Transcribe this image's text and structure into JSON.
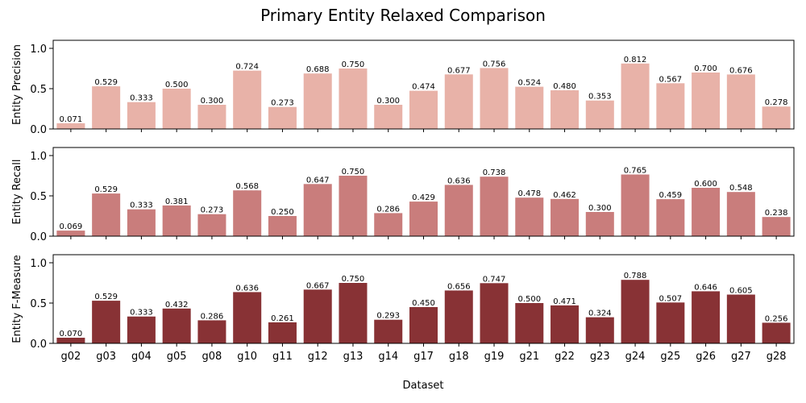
{
  "chart_data": {
    "type": "bar",
    "title": "Primary Entity Relaxed Comparison",
    "xlabel": "Dataset",
    "categories": [
      "g02",
      "g03",
      "g04",
      "g05",
      "g08",
      "g10",
      "g11",
      "g12",
      "g13",
      "g14",
      "g17",
      "g18",
      "g19",
      "g21",
      "g22",
      "g23",
      "g24",
      "g25",
      "g26",
      "g27",
      "g28"
    ],
    "ylim": [
      0,
      1.1
    ],
    "yticks": [
      "0.0",
      "0.5",
      "1.0"
    ],
    "grid": false,
    "panels": [
      {
        "ylabel": "Entity Precision",
        "color": "#e8b2a8",
        "values": [
          0.071,
          0.529,
          0.333,
          0.5,
          0.3,
          0.724,
          0.273,
          0.688,
          0.75,
          0.3,
          0.474,
          0.677,
          0.756,
          0.524,
          0.48,
          0.353,
          0.812,
          0.567,
          0.7,
          0.676,
          0.278
        ],
        "labels": [
          "0.071",
          "0.529",
          "0.333",
          "0.500",
          "0.300",
          "0.724",
          "0.273",
          "0.688",
          "0.750",
          "0.300",
          "0.474",
          "0.677",
          "0.756",
          "0.524",
          "0.480",
          "0.353",
          "0.812",
          "0.567",
          "0.700",
          "0.676",
          "0.278"
        ]
      },
      {
        "ylabel": "Entity Recall",
        "color": "#c97d7c",
        "values": [
          0.069,
          0.529,
          0.333,
          0.381,
          0.273,
          0.568,
          0.25,
          0.647,
          0.75,
          0.286,
          0.429,
          0.636,
          0.738,
          0.478,
          0.462,
          0.3,
          0.765,
          0.459,
          0.6,
          0.548,
          0.238
        ],
        "labels": [
          "0.069",
          "0.529",
          "0.333",
          "0.381",
          "0.273",
          "0.568",
          "0.250",
          "0.647",
          "0.750",
          "0.286",
          "0.429",
          "0.636",
          "0.738",
          "0.478",
          "0.462",
          "0.300",
          "0.765",
          "0.459",
          "0.600",
          "0.548",
          "0.238"
        ]
      },
      {
        "ylabel": "Entity F-Measure",
        "color": "#883235",
        "values": [
          0.07,
          0.529,
          0.333,
          0.432,
          0.286,
          0.636,
          0.261,
          0.667,
          0.75,
          0.293,
          0.45,
          0.656,
          0.747,
          0.5,
          0.471,
          0.324,
          0.788,
          0.507,
          0.646,
          0.605,
          0.256
        ],
        "labels": [
          "0.070",
          "0.529",
          "0.333",
          "0.432",
          "0.286",
          "0.636",
          "0.261",
          "0.667",
          "0.750",
          "0.293",
          "0.450",
          "0.656",
          "0.747",
          "0.500",
          "0.471",
          "0.324",
          "0.788",
          "0.507",
          "0.646",
          "0.605",
          "0.256"
        ]
      }
    ]
  }
}
